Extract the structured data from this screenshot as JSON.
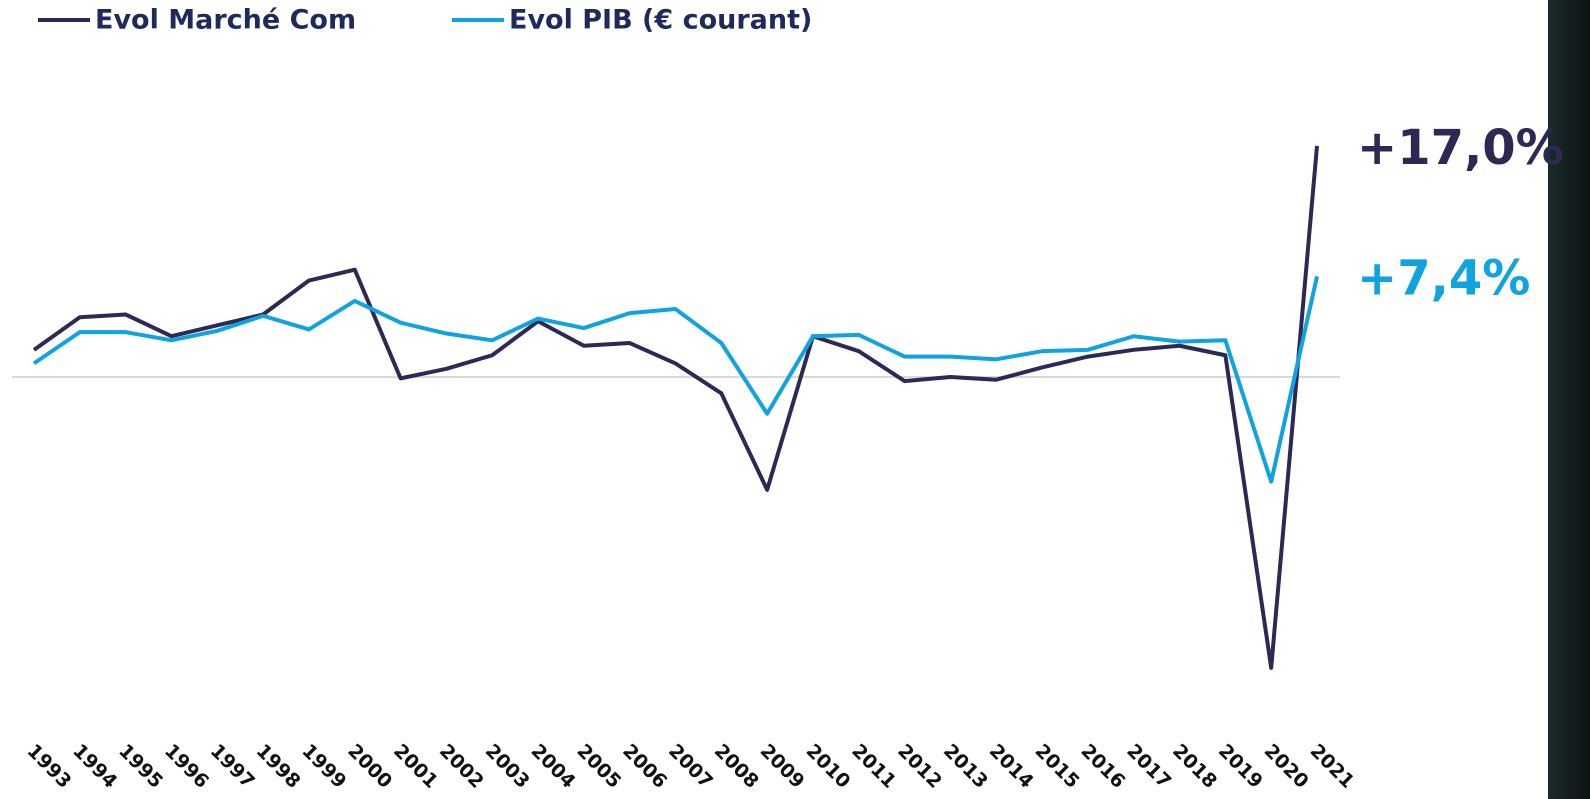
{
  "chart_data": {
    "type": "line",
    "categories": [
      "1993",
      "1994",
      "1995",
      "1996",
      "1997",
      "1998",
      "1999",
      "2000",
      "2001",
      "2002",
      "2003",
      "2004",
      "2005",
      "2006",
      "2007",
      "2008",
      "2009",
      "2010",
      "2011",
      "2012",
      "2013",
      "2014",
      "2015",
      "2016",
      "2017",
      "2018",
      "2019",
      "2020",
      "2021"
    ],
    "series": [
      {
        "name": "Evol Marché Com",
        "color": "#2c2955",
        "values": [
          2.0,
          4.4,
          4.6,
          3.0,
          3.8,
          4.6,
          7.1,
          7.9,
          -0.1,
          0.6,
          1.6,
          4.1,
          2.3,
          2.5,
          1.0,
          -1.2,
          -8.3,
          3.0,
          1.9,
          -0.3,
          0.0,
          -0.2,
          0.7,
          1.5,
          2.0,
          2.3,
          1.6,
          -21.4,
          17.0
        ],
        "value_labels": [
          null,
          null,
          null,
          null,
          null,
          null,
          null,
          null,
          null,
          null,
          null,
          null,
          null,
          null,
          null,
          null,
          null,
          null,
          null,
          null,
          null,
          null,
          null,
          null,
          null,
          null,
          null,
          null,
          "+17,0%"
        ]
      },
      {
        "name": "Evol PIB (€ courant)",
        "color": "#0fa3e0",
        "values": [
          1.0,
          3.3,
          3.3,
          2.7,
          3.4,
          4.5,
          3.5,
          5.6,
          4.0,
          3.2,
          2.7,
          4.3,
          3.6,
          4.7,
          5.0,
          2.5,
          -2.7,
          3.0,
          3.1,
          1.5,
          1.5,
          1.3,
          1.9,
          2.0,
          3.0,
          2.6,
          2.7,
          -7.7,
          7.4
        ],
        "value_labels": [
          null,
          null,
          null,
          null,
          null,
          null,
          null,
          null,
          null,
          null,
          null,
          null,
          null,
          null,
          null,
          null,
          null,
          null,
          null,
          null,
          null,
          null,
          null,
          null,
          null,
          null,
          null,
          null,
          "+7,4%"
        ]
      }
    ],
    "ylim": [
      -25,
      28
    ]
  }
}
